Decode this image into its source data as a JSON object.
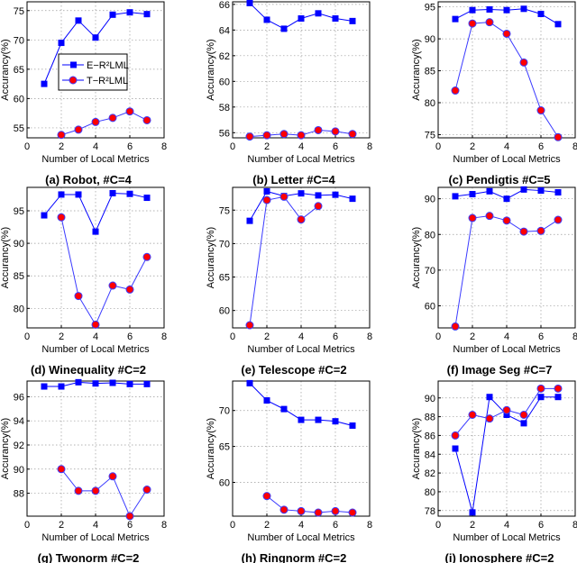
{
  "colors": {
    "e_series": "#0000ff",
    "t_series_fill": "#ff0000",
    "t_series_line": "#3a3aff"
  },
  "chart_data": [
    {
      "type": "line",
      "caption": "(a) Robot,  #C=4",
      "xlabel": "Number of Local Metrics",
      "ylabel": "Accurancy(%)",
      "xlim": [
        0,
        8
      ],
      "xticks": [
        0,
        2,
        4,
        6,
        8
      ],
      "ylim": [
        53.3,
        76.5
      ],
      "yticks": [
        55,
        60,
        65,
        70,
        75
      ],
      "grid": true,
      "legend": "center-left",
      "series": [
        {
          "name": "E−R²LML",
          "marker": "square",
          "x": [
            1,
            2,
            3,
            4,
            5,
            6,
            7
          ],
          "y": [
            62.5,
            69.5,
            73.3,
            70.4,
            74.3,
            74.7,
            74.4
          ]
        },
        {
          "name": "T−R²LML",
          "marker": "circle",
          "x": [
            2,
            3,
            4,
            5,
            6,
            7
          ],
          "y": [
            53.8,
            54.7,
            56.0,
            56.7,
            57.8,
            56.3
          ]
        }
      ]
    },
    {
      "type": "line",
      "caption": "(b) Letter  #C=4",
      "xlabel": "Number of Local Metrics",
      "ylabel": "Accurancy(%)",
      "xlim": [
        0,
        8
      ],
      "xticks": [
        0,
        2,
        4,
        6,
        8
      ],
      "ylim": [
        55.6,
        66.2
      ],
      "yticks": [
        56,
        58,
        60,
        62,
        64,
        66
      ],
      "grid": true,
      "series": [
        {
          "marker": "square",
          "x": [
            1,
            2,
            3,
            4,
            5,
            6,
            7
          ],
          "y": [
            66.1,
            64.8,
            64.1,
            64.9,
            65.3,
            64.9,
            64.7
          ]
        },
        {
          "marker": "circle",
          "x": [
            1,
            2,
            3,
            4,
            5,
            6,
            7
          ],
          "y": [
            55.7,
            55.8,
            55.9,
            55.8,
            56.2,
            56.1,
            55.9
          ]
        }
      ]
    },
    {
      "type": "line",
      "caption": "(c) Pendigtis  #C=5",
      "xlabel": "Number of Local Metrics",
      "ylabel": "Accurancy(%)",
      "xlim": [
        0,
        8
      ],
      "xticks": [
        0,
        2,
        4,
        6,
        8
      ],
      "ylim": [
        74.5,
        95.8
      ],
      "yticks": [
        75,
        80,
        85,
        90,
        95
      ],
      "grid": true,
      "series": [
        {
          "marker": "square",
          "x": [
            1,
            2,
            3,
            4,
            5,
            6,
            7
          ],
          "y": [
            93.1,
            94.5,
            94.6,
            94.5,
            94.7,
            93.9,
            92.3
          ]
        },
        {
          "marker": "circle",
          "x": [
            1,
            2,
            3,
            4,
            5,
            6,
            7
          ],
          "y": [
            81.9,
            92.4,
            92.6,
            90.8,
            86.3,
            78.8,
            74.6
          ]
        }
      ]
    },
    {
      "type": "line",
      "caption": "(d) Winequality #C=2",
      "xlabel": "Number of Local Metrics",
      "ylabel": "Accurancy(%)",
      "xlim": [
        0,
        8
      ],
      "xticks": [
        0,
        2,
        4,
        6,
        8
      ],
      "ylim": [
        77,
        98.6
      ],
      "yticks": [
        80,
        85,
        90,
        95
      ],
      "grid": true,
      "series": [
        {
          "marker": "square",
          "x": [
            1,
            2,
            3,
            4,
            5,
            6,
            7
          ],
          "y": [
            94.3,
            97.5,
            97.5,
            91.8,
            97.7,
            97.6,
            97.0
          ]
        },
        {
          "marker": "circle",
          "x": [
            2,
            3,
            4,
            5,
            6,
            7
          ],
          "y": [
            94.0,
            81.9,
            77.5,
            83.5,
            82.9,
            87.9
          ]
        }
      ]
    },
    {
      "type": "line",
      "caption": "(e) Telescope  #C=2",
      "xlabel": "Number of Local Metrics",
      "ylabel": "Accurancy(%)",
      "xlim": [
        0,
        8
      ],
      "xticks": [
        0,
        2,
        4,
        6,
        8
      ],
      "ylim": [
        57.4,
        78.4
      ],
      "yticks": [
        60,
        65,
        70,
        75
      ],
      "grid": true,
      "series": [
        {
          "marker": "square",
          "x": [
            1,
            2,
            3,
            4,
            5,
            6,
            7
          ],
          "y": [
            73.4,
            77.8,
            77.1,
            77.5,
            77.2,
            77.3,
            76.7
          ]
        },
        {
          "marker": "circle",
          "x": [
            1,
            2,
            3,
            4,
            5
          ],
          "y": [
            57.8,
            76.5,
            77.0,
            73.6,
            75.6
          ]
        }
      ]
    },
    {
      "type": "line",
      "caption": "(f) Image Seg  #C=7",
      "xlabel": "Number of Local Metrics",
      "ylabel": "Accurancy(%)",
      "xlim": [
        0,
        8
      ],
      "xticks": [
        0,
        2,
        4,
        6,
        8
      ],
      "ylim": [
        53.8,
        93.2
      ],
      "yticks": [
        60,
        70,
        80,
        90
      ],
      "grid": true,
      "series": [
        {
          "marker": "square",
          "x": [
            1,
            2,
            3,
            4,
            5,
            6,
            7
          ],
          "y": [
            90.7,
            91.3,
            92.1,
            90.0,
            92.6,
            92.3,
            91.8
          ]
        },
        {
          "marker": "circle",
          "x": [
            1,
            2,
            3,
            4,
            5,
            6,
            7
          ],
          "y": [
            54.2,
            84.6,
            85.2,
            83.9,
            80.8,
            81.0,
            84.1
          ]
        }
      ]
    },
    {
      "type": "line",
      "caption": "(g) Twonorm  #C=2",
      "xlabel": "Number of Local Metrics",
      "ylabel": "Accurancy(%)",
      "xlim": [
        0,
        8
      ],
      "xticks": [
        0,
        2,
        4,
        6,
        8
      ],
      "ylim": [
        86.1,
        97.3
      ],
      "yticks": [
        88,
        90,
        92,
        94,
        96
      ],
      "grid": true,
      "series": [
        {
          "marker": "square",
          "x": [
            1,
            2,
            3,
            4,
            5,
            6,
            7
          ],
          "y": [
            96.85,
            96.85,
            97.2,
            97.1,
            97.15,
            97.05,
            97.05
          ]
        },
        {
          "marker": "circle",
          "x": [
            2,
            3,
            4,
            5,
            6,
            7
          ],
          "y": [
            90.0,
            88.2,
            88.2,
            89.4,
            86.1,
            88.3
          ]
        }
      ]
    },
    {
      "type": "line",
      "caption": "(h) Ringnorm  #C=2",
      "xlabel": "Number of Local Metrics",
      "ylabel": "Accurancy(%)",
      "xlim": [
        0,
        8
      ],
      "xticks": [
        0,
        2,
        4,
        6,
        8
      ],
      "ylim": [
        55.3,
        74.1
      ],
      "yticks": [
        60,
        65,
        70
      ],
      "grid": true,
      "series": [
        {
          "marker": "square",
          "x": [
            1,
            2,
            3,
            4,
            5,
            6,
            7
          ],
          "y": [
            73.8,
            71.4,
            70.2,
            68.7,
            68.7,
            68.5,
            67.9
          ]
        },
        {
          "marker": "circle",
          "x": [
            2,
            3,
            4,
            5,
            6,
            7
          ],
          "y": [
            58.1,
            56.2,
            56.0,
            55.8,
            56.0,
            55.8
          ]
        }
      ]
    },
    {
      "type": "line",
      "caption": "(i) Ionosphere  #C=2",
      "xlabel": "Number of Local Metrics",
      "ylabel": "Accurancy(%)",
      "xlim": [
        0,
        8
      ],
      "xticks": [
        0,
        2,
        4,
        6,
        8
      ],
      "ylim": [
        77.4,
        91.8
      ],
      "yticks": [
        78,
        80,
        82,
        84,
        86,
        88,
        90
      ],
      "grid": true,
      "series": [
        {
          "marker": "square",
          "x": [
            1,
            2,
            3,
            4,
            5,
            6,
            7
          ],
          "y": [
            84.6,
            77.8,
            90.1,
            88.2,
            87.3,
            90.1,
            90.1
          ]
        },
        {
          "marker": "circle",
          "x": [
            1,
            2,
            3,
            4,
            5,
            6,
            7
          ],
          "y": [
            86.0,
            88.2,
            87.8,
            88.7,
            88.2,
            91.0,
            91.0
          ]
        }
      ]
    }
  ]
}
